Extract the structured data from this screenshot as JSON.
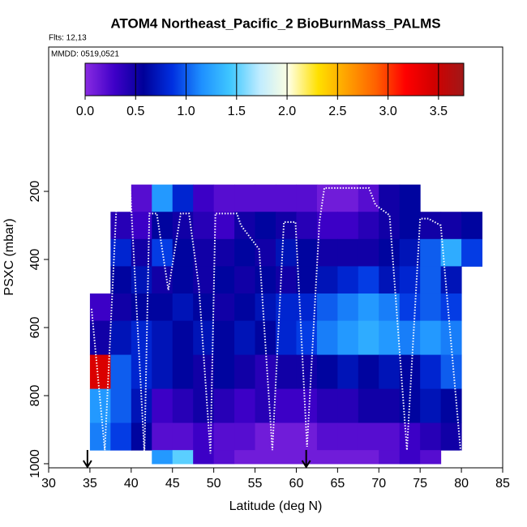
{
  "chart_data": {
    "type": "heatmap",
    "title": "ATOM4 Northeast_Pacific_2 BioBurnMass_PALMS",
    "subtitle": "Flts: 12,13",
    "annotation": "MMDD: 0519,0521",
    "x_label": "Latitude (deg N)",
    "y_label": "PSXC (mbar)",
    "xlim": [
      30,
      85
    ],
    "xticks": [
      30,
      35,
      40,
      45,
      50,
      55,
      60,
      65,
      70,
      75,
      80,
      85
    ],
    "ylim": [
      1012,
      -224
    ],
    "yticks": [
      200,
      400,
      600,
      800,
      1000
    ],
    "clim": [
      0,
      3.75
    ],
    "cticks": [
      {
        "value": 0,
        "label": "0.0"
      },
      {
        "value": 0.5,
        "label": "0.5"
      },
      {
        "value": 1,
        "label": "1.0"
      },
      {
        "value": 1.5,
        "label": "1.5"
      },
      {
        "value": 2,
        "label": "2.0"
      },
      {
        "value": 2.5,
        "label": "2.5"
      },
      {
        "value": 3,
        "label": "3.0"
      },
      {
        "value": 3.5,
        "label": "3.5"
      }
    ],
    "colormap": [
      "#8a2be2",
      "#3f00c8",
      "#000099",
      "#0030e0",
      "#1e90ff",
      "#40c8ff",
      "#c0ecff",
      "#ffffe0",
      "#ffe000",
      "#ffa000",
      "#ff6000",
      "#ff0000",
      "#d00000",
      "#a01818"
    ],
    "x_edges": [
      35,
      37.5,
      40,
      42.5,
      45,
      47.5,
      50,
      52.5,
      55,
      57.5,
      60,
      62.5,
      65,
      67.5,
      70,
      72.5,
      75,
      77.5,
      80,
      82.5
    ],
    "y_edges": [
      180,
      260,
      340,
      420,
      500,
      580,
      680,
      780,
      880,
      960,
      1000
    ],
    "values": [
      [
        null,
        null,
        0.2,
        1.2,
        0.8,
        0.3,
        0.2,
        0.2,
        0.2,
        0.2,
        0.2,
        0.1,
        0.1,
        0.2,
        0.5,
        0.6,
        null,
        null,
        null
      ],
      [
        null,
        0.4,
        0.3,
        0.6,
        0.5,
        0.4,
        0.3,
        0.5,
        0.6,
        0.5,
        0.4,
        0.3,
        0.3,
        0.4,
        0.5,
        0.6,
        0.5,
        0.5,
        0.6
      ],
      [
        null,
        0.8,
        0.5,
        0.9,
        0.6,
        0.5,
        0.5,
        0.6,
        0.5,
        0.7,
        0.6,
        0.5,
        0.5,
        0.5,
        0.6,
        0.7,
        1.0,
        1.3,
        0.9
      ],
      [
        null,
        0.6,
        0.7,
        0.5,
        0.6,
        0.5,
        0.6,
        0.5,
        0.6,
        0.5,
        0.6,
        0.7,
        0.8,
        0.9,
        0.7,
        0.8,
        1.0,
        0.7,
        null
      ],
      [
        0.3,
        0.5,
        0.6,
        0.6,
        0.7,
        0.6,
        0.5,
        0.6,
        0.7,
        0.8,
        0.8,
        1.0,
        1.1,
        1.2,
        1.1,
        0.9,
        1.0,
        0.9,
        null
      ],
      [
        0.5,
        0.7,
        0.8,
        0.7,
        0.6,
        0.7,
        0.6,
        0.7,
        0.6,
        0.8,
        0.9,
        1.1,
        1.2,
        1.3,
        1.2,
        1.1,
        1.2,
        1.1,
        null
      ],
      [
        3.4,
        1.0,
        0.8,
        0.7,
        0.6,
        0.5,
        0.6,
        0.5,
        0.4,
        0.5,
        0.5,
        0.6,
        0.7,
        0.6,
        0.7,
        0.6,
        0.8,
        1.0,
        null
      ],
      [
        1.2,
        1.0,
        0.7,
        0.3,
        0.4,
        0.5,
        0.4,
        0.3,
        0.4,
        0.3,
        0.3,
        0.4,
        0.4,
        0.5,
        0.5,
        0.6,
        0.7,
        0.6,
        null
      ],
      [
        1.1,
        0.9,
        0.6,
        0.2,
        0.2,
        0.3,
        0.2,
        0.2,
        0.1,
        0.1,
        0.1,
        0.2,
        0.2,
        0.2,
        0.2,
        0.3,
        0.4,
        0.5,
        null
      ],
      [
        null,
        null,
        null,
        1.2,
        1.5,
        0.3,
        0.2,
        0.1,
        0.1,
        0.1,
        0.1,
        0.1,
        0.1,
        0.1,
        0.2,
        0.3,
        0.2,
        null,
        null
      ]
    ],
    "track": {
      "color": "#ffffff",
      "x": [
        35.2,
        36.8,
        38.3,
        39.9,
        41.6,
        42.2,
        43.1,
        44.5,
        46,
        47,
        48.2,
        49.6,
        50.2,
        51.5,
        52.8,
        53.3,
        55.5,
        57.1,
        58.5,
        59.9,
        61.3,
        62.8,
        63.4,
        65.7,
        68.8,
        69.6,
        71.3,
        73.4,
        75.0,
        76.0,
        77.5,
        80.0
      ],
      "y": [
        545,
        960,
        200,
        200,
        970,
        265,
        265,
        490,
        265,
        265,
        480,
        970,
        265,
        265,
        265,
        300,
        370,
        960,
        290,
        290,
        950,
        290,
        190,
        190,
        190,
        240,
        270,
        960,
        280,
        280,
        300,
        990
      ]
    },
    "arrows": [
      34.7,
      61.2
    ]
  }
}
